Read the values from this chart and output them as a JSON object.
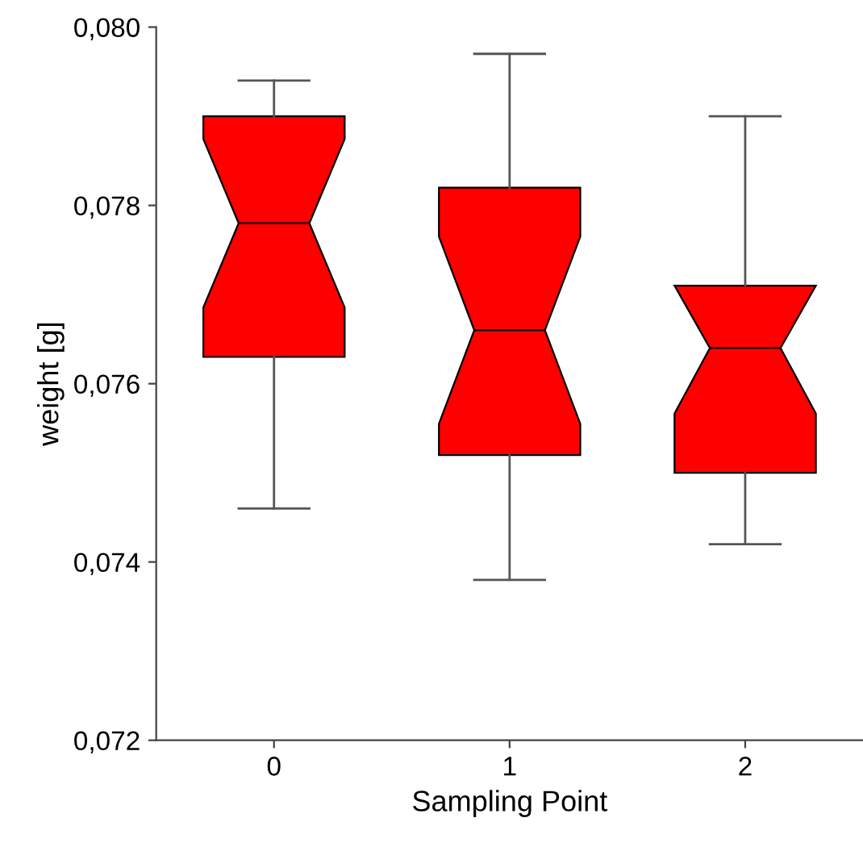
{
  "chart_data": {
    "type": "box",
    "xlabel": "Sampling Point",
    "ylabel": "weight [g]",
    "categories": [
      "0",
      "1",
      "2"
    ],
    "series": [
      {
        "color": "#ff0000",
        "boxes": [
          {
            "low": 0.0746,
            "q1": 0.0763,
            "median": 0.0778,
            "q3": 0.079,
            "high": 0.0794
          },
          {
            "low": 0.0738,
            "q1": 0.0752,
            "median": 0.0766,
            "q3": 0.0782,
            "high": 0.0797
          },
          {
            "low": 0.0742,
            "q1": 0.075,
            "median": 0.0764,
            "q3": 0.0771,
            "high": 0.079
          }
        ]
      }
    ],
    "ylim": [
      0.072,
      0.08
    ],
    "yticks": [
      {
        "value": 0.072,
        "label": "0,072"
      },
      {
        "value": 0.074,
        "label": "0,074"
      },
      {
        "value": 0.076,
        "label": "0,076"
      },
      {
        "value": 0.078,
        "label": "0,078"
      },
      {
        "value": 0.08,
        "label": "0,080"
      }
    ],
    "grid": false
  }
}
